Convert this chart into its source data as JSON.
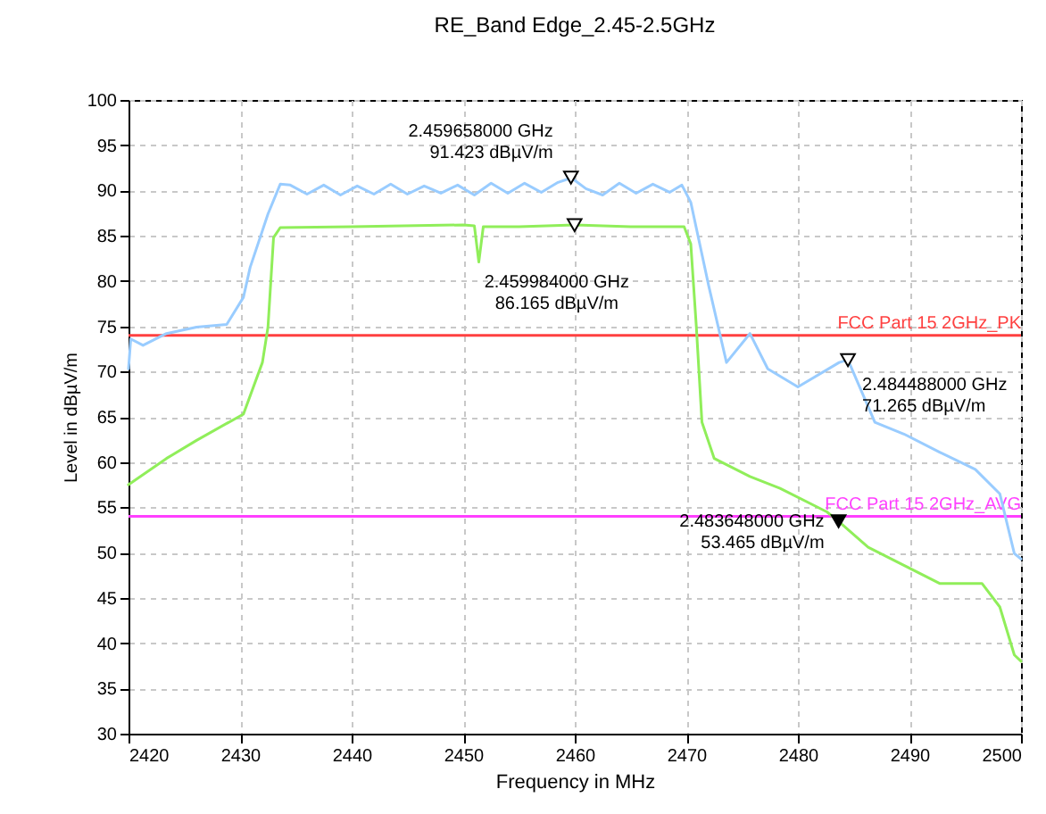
{
  "chart_data": {
    "type": "line",
    "title": "RE_Band Edge_2.45-2.5GHz",
    "xlabel": "Frequency in MHz",
    "ylabel": "Level in dBµV/m",
    "xlim": [
      2420,
      2500
    ],
    "xticks": [
      2420,
      2430,
      2440,
      2450,
      2460,
      2470,
      2480,
      2490,
      2500
    ],
    "ylim": [
      30,
      100
    ],
    "yticks": [
      30,
      35,
      40,
      45,
      50,
      55,
      60,
      65,
      70,
      75,
      80,
      85,
      90,
      95,
      100
    ],
    "grid": true,
    "line_style": "solid",
    "series": [
      {
        "color": "#99ccff",
        "x": [
          2420,
          2420.2,
          2421.3,
          2423.4,
          2426.1,
          2428.8,
          2430.3,
          2430.9,
          2432.5,
          2433.6,
          2434.5,
          2436,
          2437.5,
          2439,
          2440.5,
          2442,
          2443.5,
          2445,
          2446.5,
          2448,
          2449.5,
          2451,
          2452.5,
          2454,
          2455.5,
          2457,
          2458.5,
          2459.7,
          2461,
          2462.5,
          2464,
          2465.5,
          2467,
          2468.5,
          2469.6,
          2470.4,
          2472,
          2473.6,
          2475.7,
          2477.3,
          2480,
          2483.7,
          2484.488,
          2486.9,
          2489.5,
          2492.7,
          2495.9,
          2498.1,
          2499.4,
          2500
        ],
        "values": [
          70.3,
          73.6,
          72.9,
          74.2,
          74.9,
          75.2,
          78.2,
          81.5,
          87.4,
          90.7,
          90.6,
          89.6,
          90.6,
          89.5,
          90.5,
          89.6,
          90.7,
          89.6,
          90.5,
          89.7,
          90.6,
          89.5,
          90.8,
          89.7,
          90.8,
          89.8,
          90.9,
          91.4,
          90.2,
          89.5,
          90.8,
          89.7,
          90.7,
          89.8,
          90.6,
          88.7,
          79.5,
          71,
          74.2,
          70.3,
          68.3,
          71,
          71.3,
          64.4,
          63.1,
          61.1,
          59.2,
          56.5,
          49.9,
          49.3
        ]
      },
      {
        "color": "#90ee5a",
        "x": [
          2420,
          2423.4,
          2426.1,
          2430.3,
          2432,
          2432.5,
          2433,
          2433.6,
          2440,
          2450,
          2451,
          2451.4,
          2451.8,
          2455,
          2460,
          2465,
          2469.8,
          2470.4,
          2470.9,
          2471.4,
          2472.5,
          2475.7,
          2478.4,
          2482.6,
          2483.6,
          2486.3,
          2489.5,
          2492.7,
          2496.5,
          2498.1,
          2499.4,
          2500
        ],
        "values": [
          57.5,
          60.4,
          62.4,
          65.3,
          71,
          74.9,
          84.8,
          85.9,
          86,
          86.2,
          86.1,
          82.1,
          86,
          86,
          86.2,
          86,
          86,
          84.1,
          74.9,
          64.4,
          60.4,
          58.4,
          57.1,
          54.5,
          53.5,
          50.6,
          48.6,
          46.6,
          46.6,
          44,
          38.7,
          38
        ]
      }
    ],
    "ref_lines": [
      {
        "axis": "y",
        "value": 74,
        "label": "FCC Part 15 2GHz_PK",
        "color": "#ff4040"
      },
      {
        "axis": "y",
        "value": 54,
        "label": "FCC Part 15 2GHz_AVG",
        "color": "#ff40ff"
      }
    ],
    "annotations": [
      {
        "text": "2.459658000 GHz\n91.423 dBµV/m",
        "x": 2459.658,
        "y": 91.423
      },
      {
        "text": "2.459984000 GHz\n86.165 dBµV/m",
        "x": 2459.984,
        "y": 86.165
      },
      {
        "text": "2.484488000 GHz\n71.265 dBµV/m",
        "x": 2484.488,
        "y": 71.265
      },
      {
        "text": "2.483648000 GHz\n53.465 dBµV/m",
        "x": 2483.648,
        "y": 53.465
      }
    ]
  }
}
